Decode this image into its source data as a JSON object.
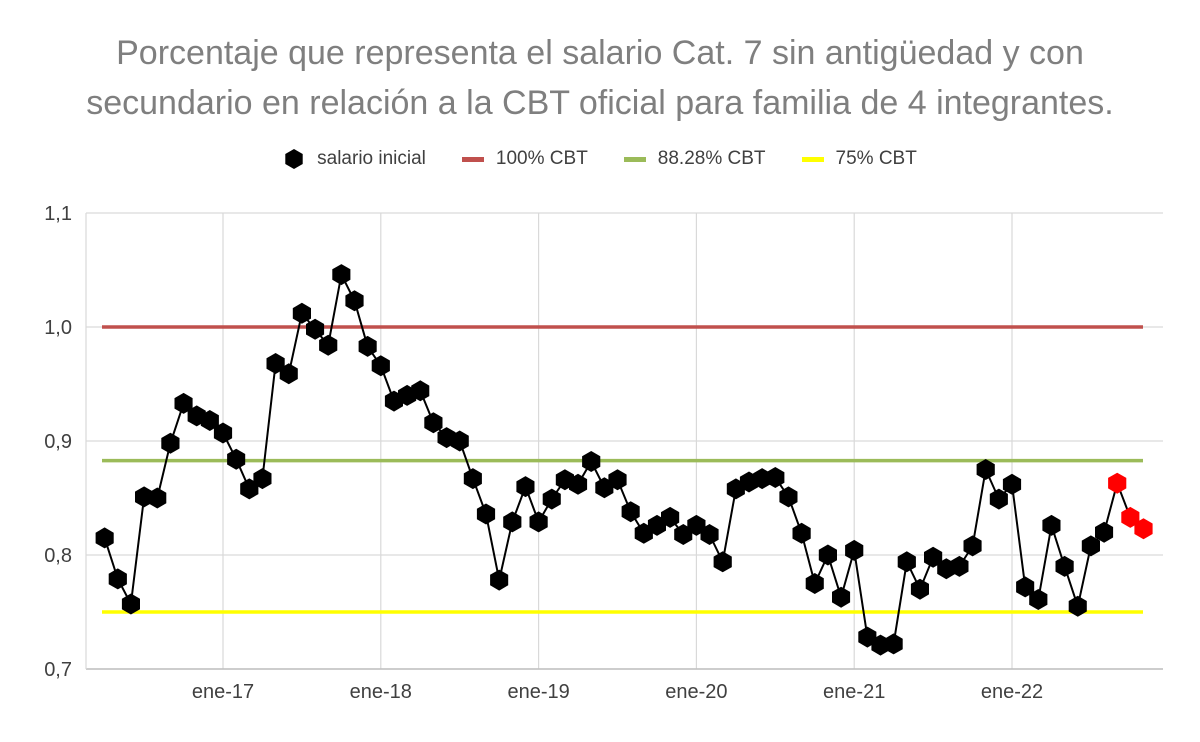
{
  "chart_data": {
    "type": "line",
    "title_line1": "Porcentaje que representa el salario Cat. 7 sin antigüedad y con",
    "title_line2": "secundario en relación a la CBT oficial para familia de 4 integrantes.",
    "ylim": [
      0.7,
      1.1
    ],
    "y_ticks": [
      "0,7",
      "0,8",
      "0,9",
      "1,0",
      "1,1"
    ],
    "y_tick_values": [
      0.7,
      0.8,
      0.9,
      1.0,
      1.1
    ],
    "x_ticks": [
      "ene-17",
      "ene-18",
      "ene-19",
      "ene-20",
      "ene-21",
      "ene-22"
    ],
    "x_tick_months": [
      "2017-01",
      "2018-01",
      "2019-01",
      "2020-01",
      "2021-01",
      "2022-01"
    ],
    "x_start": "2016-04",
    "x_end": "2022-12",
    "grid": true,
    "legend_position": "top",
    "series": [
      {
        "name": "salario inicial",
        "kind": "markers",
        "color": "#000000",
        "start_month": "2016-04",
        "values": [
          0.815,
          0.779,
          0.757,
          0.851,
          0.85,
          0.898,
          0.933,
          0.922,
          0.918,
          0.907,
          0.884,
          0.858,
          0.867,
          0.968,
          0.959,
          1.012,
          0.998,
          0.984,
          1.046,
          1.023,
          0.983,
          0.966,
          0.935,
          0.94,
          0.944,
          0.916,
          0.903,
          0.9,
          0.867,
          0.836,
          0.778,
          0.829,
          0.86,
          0.829,
          0.849,
          0.866,
          0.862,
          0.882,
          0.859,
          0.866,
          0.838,
          0.819,
          0.826,
          0.833,
          0.818,
          0.826,
          0.818,
          0.794,
          0.858,
          0.864,
          0.867,
          0.868,
          0.851,
          0.819,
          0.775,
          0.8,
          0.763,
          0.804,
          0.728,
          0.721,
          0.722,
          0.794,
          0.77,
          0.798,
          0.788,
          0.79,
          0.808,
          0.875,
          0.849,
          0.862,
          0.772,
          0.761,
          0.826,
          0.79,
          0.755,
          0.808,
          0.82,
          0.863,
          0.833,
          0.823
        ],
        "highlight_color": "#ff0000",
        "highlight_from_index": 77
      },
      {
        "name": "100% CBT",
        "kind": "hline",
        "value": 1.0,
        "color": "#c0504d"
      },
      {
        "name": "88.28% CBT",
        "kind": "hline",
        "value": 0.8828,
        "color": "#9bbb59"
      },
      {
        "name": "75% CBT",
        "kind": "hline",
        "value": 0.75,
        "color": "#ffff00"
      }
    ]
  }
}
